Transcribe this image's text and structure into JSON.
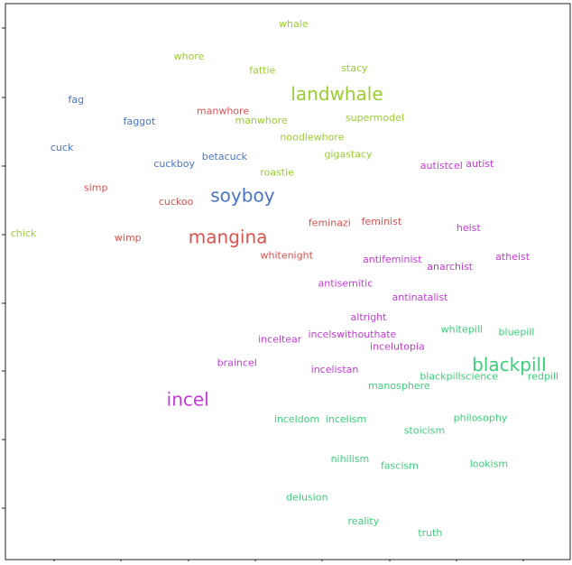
{
  "chart_data": {
    "type": "scatter",
    "title": "",
    "xlabel": "",
    "ylabel": "",
    "xlim": [
      0,
      100
    ],
    "ylim": [
      0,
      100
    ],
    "grid": false,
    "legend": "none",
    "colors": {
      "yellowgreen": "#9acd32",
      "blue": "#4a74c9",
      "red": "#d9534f",
      "magenta": "#c43cd6",
      "green": "#3ccf7a"
    },
    "points": [
      {
        "label": "whale",
        "x": 51.0,
        "y": 96.3,
        "color": "yellowgreen",
        "size": 11
      },
      {
        "label": "whore",
        "x": 32.5,
        "y": 90.4,
        "color": "yellowgreen",
        "size": 11
      },
      {
        "label": "stacy",
        "x": 61.8,
        "y": 88.3,
        "color": "yellowgreen",
        "size": 11
      },
      {
        "label": "fattie",
        "x": 45.5,
        "y": 87.9,
        "color": "yellowgreen",
        "size": 11
      },
      {
        "label": "landwhale",
        "x": 58.7,
        "y": 83.5,
        "color": "yellowgreen",
        "size": 20
      },
      {
        "label": "supermodel",
        "x": 65.4,
        "y": 79.4,
        "color": "yellowgreen",
        "size": 11
      },
      {
        "label": "manwhore",
        "x": 45.3,
        "y": 78.9,
        "color": "yellowgreen",
        "size": 11
      },
      {
        "label": "noodlewhore",
        "x": 54.3,
        "y": 75.9,
        "color": "yellowgreen",
        "size": 11
      },
      {
        "label": "gigastacy",
        "x": 60.7,
        "y": 72.8,
        "color": "yellowgreen",
        "size": 11
      },
      {
        "label": "roastie",
        "x": 48.1,
        "y": 69.6,
        "color": "yellowgreen",
        "size": 11
      },
      {
        "label": "chick",
        "x": 3.2,
        "y": 58.6,
        "color": "yellowgreen",
        "size": 11
      },
      {
        "label": "fag",
        "x": 12.5,
        "y": 82.6,
        "color": "blue",
        "size": 11
      },
      {
        "label": "faggot",
        "x": 23.7,
        "y": 78.7,
        "color": "blue",
        "size": 11
      },
      {
        "label": "cuck",
        "x": 10.0,
        "y": 74.0,
        "color": "blue",
        "size": 11
      },
      {
        "label": "betacuck",
        "x": 38.8,
        "y": 72.4,
        "color": "blue",
        "size": 11
      },
      {
        "label": "cuckboy",
        "x": 29.9,
        "y": 71.1,
        "color": "blue",
        "size": 11
      },
      {
        "label": "soyboy",
        "x": 42.0,
        "y": 65.3,
        "color": "blue",
        "size": 20
      },
      {
        "label": "manwhore",
        "x": 38.5,
        "y": 80.6,
        "color": "red",
        "size": 11
      },
      {
        "label": "simp",
        "x": 16.0,
        "y": 66.8,
        "color": "red",
        "size": 11
      },
      {
        "label": "cuckoo",
        "x": 30.2,
        "y": 64.3,
        "color": "red",
        "size": 11
      },
      {
        "label": "feminazi",
        "x": 57.4,
        "y": 60.5,
        "color": "red",
        "size": 11
      },
      {
        "label": "feminist",
        "x": 66.6,
        "y": 60.7,
        "color": "red",
        "size": 11
      },
      {
        "label": "mangina",
        "x": 39.4,
        "y": 57.8,
        "color": "red",
        "size": 20
      },
      {
        "label": "wimp",
        "x": 21.7,
        "y": 57.8,
        "color": "red",
        "size": 11
      },
      {
        "label": "whitenight",
        "x": 49.8,
        "y": 54.6,
        "color": "red",
        "size": 11
      },
      {
        "label": "autistcel",
        "x": 77.2,
        "y": 70.8,
        "color": "magenta",
        "size": 11
      },
      {
        "label": "autist",
        "x": 84.0,
        "y": 71.1,
        "color": "magenta",
        "size": 11
      },
      {
        "label": "heist",
        "x": 82.0,
        "y": 59.6,
        "color": "magenta",
        "size": 11
      },
      {
        "label": "antifeminist",
        "x": 68.5,
        "y": 53.9,
        "color": "magenta",
        "size": 11
      },
      {
        "label": "atheist",
        "x": 89.8,
        "y": 54.4,
        "color": "magenta",
        "size": 11
      },
      {
        "label": "anarchist",
        "x": 78.7,
        "y": 52.6,
        "color": "magenta",
        "size": 11
      },
      {
        "label": "antisemitic",
        "x": 60.2,
        "y": 49.6,
        "color": "magenta",
        "size": 11
      },
      {
        "label": "antinatalist",
        "x": 73.4,
        "y": 47.1,
        "color": "magenta",
        "size": 11
      },
      {
        "label": "altright",
        "x": 64.3,
        "y": 43.5,
        "color": "magenta",
        "size": 11
      },
      {
        "label": "incelswithouthate",
        "x": 61.4,
        "y": 40.4,
        "color": "magenta",
        "size": 11
      },
      {
        "label": "inceltear",
        "x": 48.6,
        "y": 39.5,
        "color": "magenta",
        "size": 11
      },
      {
        "label": "incelutopia",
        "x": 69.4,
        "y": 38.2,
        "color": "magenta",
        "size": 11
      },
      {
        "label": "braincel",
        "x": 41.0,
        "y": 35.3,
        "color": "magenta",
        "size": 11
      },
      {
        "label": "incelistan",
        "x": 58.3,
        "y": 34.1,
        "color": "magenta",
        "size": 11
      },
      {
        "label": "incel",
        "x": 32.3,
        "y": 28.6,
        "color": "magenta",
        "size": 20
      },
      {
        "label": "whitepill",
        "x": 80.8,
        "y": 41.3,
        "color": "green",
        "size": 11
      },
      {
        "label": "bluepill",
        "x": 90.5,
        "y": 40.8,
        "color": "green",
        "size": 11
      },
      {
        "label": "blackpill",
        "x": 89.2,
        "y": 34.8,
        "color": "green",
        "size": 20
      },
      {
        "label": "blackpillscience",
        "x": 80.3,
        "y": 32.9,
        "color": "green",
        "size": 11
      },
      {
        "label": "redpill",
        "x": 95.2,
        "y": 32.9,
        "color": "green",
        "size": 11
      },
      {
        "label": "manosphere",
        "x": 69.7,
        "y": 31.2,
        "color": "green",
        "size": 11
      },
      {
        "label": "inceldom",
        "x": 51.6,
        "y": 25.2,
        "color": "green",
        "size": 11
      },
      {
        "label": "incelism",
        "x": 60.3,
        "y": 25.2,
        "color": "green",
        "size": 11
      },
      {
        "label": "philosophy",
        "x": 84.1,
        "y": 25.4,
        "color": "green",
        "size": 11
      },
      {
        "label": "stoicism",
        "x": 74.2,
        "y": 23.1,
        "color": "green",
        "size": 11
      },
      {
        "label": "nihilism",
        "x": 61.0,
        "y": 18.0,
        "color": "green",
        "size": 11
      },
      {
        "label": "fascism",
        "x": 69.8,
        "y": 16.8,
        "color": "green",
        "size": 11
      },
      {
        "label": "lookism",
        "x": 85.6,
        "y": 17.1,
        "color": "green",
        "size": 11
      },
      {
        "label": "delusion",
        "x": 53.4,
        "y": 11.1,
        "color": "green",
        "size": 11
      },
      {
        "label": "reality",
        "x": 63.4,
        "y": 6.8,
        "color": "green",
        "size": 11
      },
      {
        "label": "truth",
        "x": 75.2,
        "y": 4.7,
        "color": "green",
        "size": 11
      }
    ]
  }
}
